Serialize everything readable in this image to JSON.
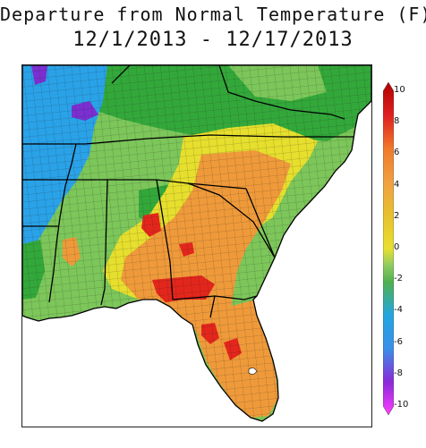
{
  "title": {
    "line1": "Departure from Normal Temperature (F)",
    "line2": "12/1/2013 - 12/17/2013"
  },
  "legend": {
    "ticks": [
      "10",
      "8",
      "6",
      "4",
      "2",
      "0",
      "-2",
      "-4",
      "-6",
      "-8",
      "-10"
    ],
    "color_stops": [
      {
        "value": 10,
        "color": "#b00000"
      },
      {
        "value": 8,
        "color": "#e02020"
      },
      {
        "value": 6,
        "color": "#f07a2a"
      },
      {
        "value": 4,
        "color": "#f0a040"
      },
      {
        "value": 2,
        "color": "#e8c030"
      },
      {
        "value": 0,
        "color": "#e8e030"
      },
      {
        "value": -1,
        "color": "#90cc60"
      },
      {
        "value": -2,
        "color": "#50b050"
      },
      {
        "value": -4,
        "color": "#22a6e0"
      },
      {
        "value": -6,
        "color": "#3a90e8"
      },
      {
        "value": -8,
        "color": "#8a2ad8"
      },
      {
        "value": -10,
        "color": "#ff3cff"
      }
    ]
  },
  "map": {
    "region": "Southeastern United States",
    "palette": {
      "cold_purple": "#7b2fd0",
      "cold_blue": "#2aa2e8",
      "cool_green": "#33a83a",
      "mild_green": "#7cc65a",
      "neutral_yellow": "#e6df2d",
      "warm_orange": "#ef9a3a",
      "hot_red": "#e3261c",
      "state_border": "#000000",
      "county_border": "#1a1a1a"
    }
  }
}
